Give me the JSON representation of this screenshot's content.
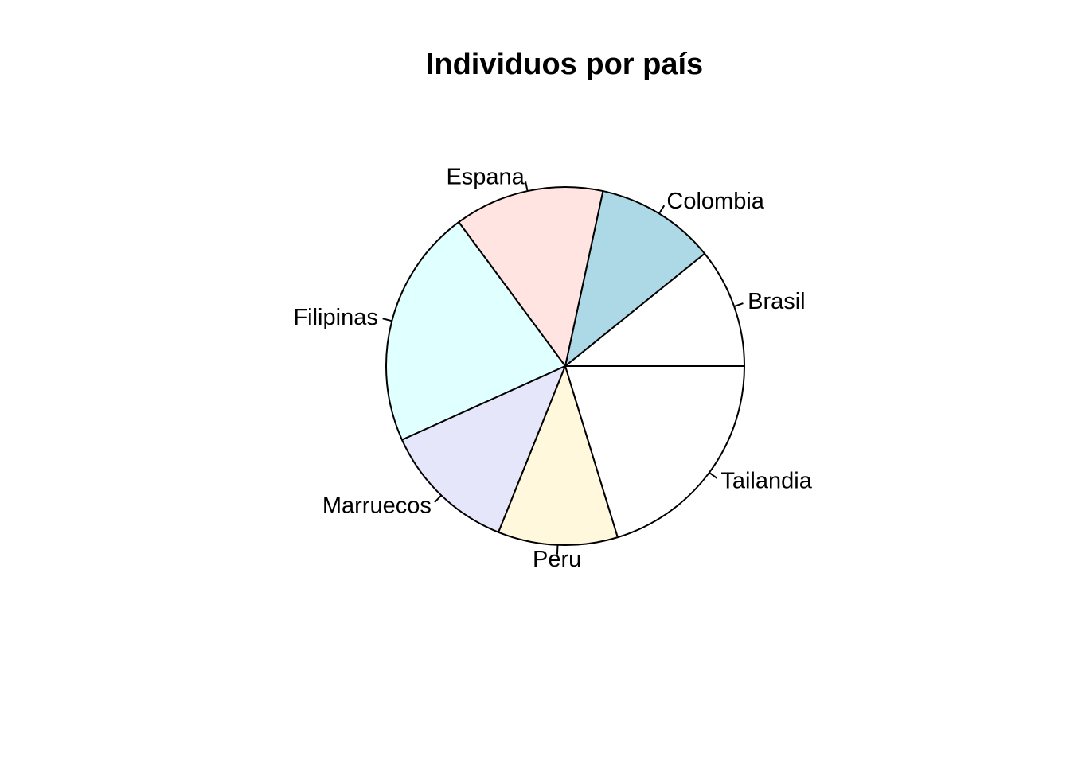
{
  "chart_data": {
    "type": "pie",
    "title": "Individuos por país",
    "clockwise": false,
    "start_angle_deg": 0,
    "slices": [
      {
        "label": "Brasil",
        "value": 8,
        "color": "#ffffff"
      },
      {
        "label": "Colombia",
        "value": 8,
        "color": "#add8e6"
      },
      {
        "label": "Espana",
        "value": 10,
        "color": "#ffe4e1"
      },
      {
        "label": "Filipinas",
        "value": 16,
        "color": "#e0ffff"
      },
      {
        "label": "Marruecos",
        "value": 9,
        "color": "#e6e6fa"
      },
      {
        "label": "Peru",
        "value": 8,
        "color": "#fff8dc"
      },
      {
        "label": "Tailandia",
        "value": 15,
        "color": "#ffffff"
      }
    ]
  }
}
